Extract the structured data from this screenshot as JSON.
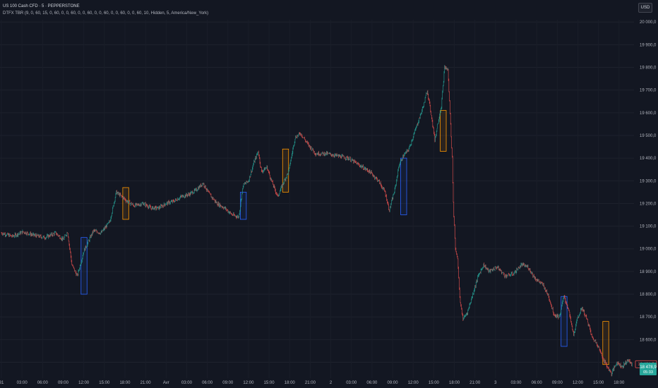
{
  "header": {
    "symbol": "US 100 Cash CFD · 5 · PEPPERSTONE",
    "indicator": "DTFX TBR (9, 0, 60, 15, 0, 60, 0, 0, 60, 0, 0, 60, 0, 0, 60, 0, 0, 60, 0, 0, 60, 10, Hidden, 5, America/New_York)",
    "currency_button": "USD"
  },
  "colors": {
    "background": "#131722",
    "up": "#26a69a",
    "down": "#ef5350",
    "axis_text": "#b2b5be",
    "box_blue": "#2962ff",
    "box_orange": "#ff9800"
  },
  "price_labels": {
    "current": "18 491,5",
    "last": "18 478,9",
    "last_time": "05:33"
  },
  "chart_data": {
    "type": "candlestick",
    "ylim": [
      18430,
      20010
    ],
    "y_ticks": [
      20000,
      19900,
      19800,
      19700,
      19600,
      19500,
      19400,
      19300,
      19200,
      19100,
      19000,
      18900,
      18800,
      18700,
      18600,
      18500
    ],
    "y_tick_labels": [
      "20 000,0",
      "19 900,0",
      "19 800,0",
      "19 700,0",
      "19 600,0",
      "19 500,0",
      "19 400,0",
      "19 300,0",
      "19 200,0",
      "19 100,0",
      "19 000,0",
      "18 900,0",
      "18 800,0",
      "18 700,0",
      "18 600,0",
      "18 500,0"
    ],
    "x_tick_labels": [
      "31",
      "03:00",
      "06:00",
      "09:00",
      "12:00",
      "15:00",
      "18:00",
      "21:00",
      "Avr",
      "03:00",
      "06:00",
      "09:00",
      "12:00",
      "15:00",
      "18:00",
      "21:00",
      "2",
      "03:00",
      "06:00",
      "09:00",
      "12:00",
      "15:00",
      "18:00",
      "21:00",
      "3",
      "03:00",
      "06:00",
      "09:00",
      "12:00",
      "15:00",
      "18:00"
    ],
    "x_tick_bars": [
      0,
      38,
      76,
      114,
      152,
      190,
      228,
      266,
      304,
      342,
      380,
      418,
      456,
      494,
      532,
      570,
      608,
      646,
      684,
      722,
      760,
      798,
      836,
      874,
      912,
      950,
      988,
      1026,
      1064,
      1102,
      1140
    ],
    "bar_count": 1165,
    "price_path": [
      [
        0,
        19070
      ],
      [
        20,
        19055
      ],
      [
        40,
        19075
      ],
      [
        60,
        19060
      ],
      [
        80,
        19050
      ],
      [
        100,
        19070
      ],
      [
        114,
        19040
      ],
      [
        122,
        19075
      ],
      [
        130,
        18930
      ],
      [
        140,
        18880
      ],
      [
        152,
        18990
      ],
      [
        160,
        19030
      ],
      [
        170,
        19080
      ],
      [
        184,
        19070
      ],
      [
        200,
        19120
      ],
      [
        212,
        19250
      ],
      [
        222,
        19230
      ],
      [
        232,
        19210
      ],
      [
        245,
        19190
      ],
      [
        262,
        19200
      ],
      [
        276,
        19180
      ],
      [
        290,
        19180
      ],
      [
        304,
        19200
      ],
      [
        318,
        19210
      ],
      [
        332,
        19230
      ],
      [
        346,
        19240
      ],
      [
        360,
        19260
      ],
      [
        372,
        19290
      ],
      [
        384,
        19240
      ],
      [
        398,
        19200
      ],
      [
        412,
        19180
      ],
      [
        426,
        19150
      ],
      [
        438,
        19140
      ],
      [
        446,
        19280
      ],
      [
        456,
        19300
      ],
      [
        466,
        19380
      ],
      [
        474,
        19430
      ],
      [
        480,
        19340
      ],
      [
        490,
        19360
      ],
      [
        500,
        19290
      ],
      [
        510,
        19230
      ],
      [
        520,
        19290
      ],
      [
        530,
        19340
      ],
      [
        542,
        19490
      ],
      [
        552,
        19510
      ],
      [
        566,
        19460
      ],
      [
        580,
        19420
      ],
      [
        600,
        19420
      ],
      [
        620,
        19410
      ],
      [
        640,
        19400
      ],
      [
        660,
        19370
      ],
      [
        680,
        19340
      ],
      [
        696,
        19300
      ],
      [
        708,
        19250
      ],
      [
        716,
        19170
      ],
      [
        726,
        19260
      ],
      [
        734,
        19370
      ],
      [
        742,
        19410
      ],
      [
        752,
        19440
      ],
      [
        762,
        19510
      ],
      [
        772,
        19580
      ],
      [
        780,
        19640
      ],
      [
        786,
        19700
      ],
      [
        794,
        19580
      ],
      [
        800,
        19480
      ],
      [
        806,
        19560
      ],
      [
        812,
        19630
      ],
      [
        818,
        19800
      ],
      [
        824,
        19790
      ],
      [
        828,
        19600
      ],
      [
        832,
        19400
      ],
      [
        834,
        19200
      ],
      [
        838,
        19000
      ],
      [
        842,
        18960
      ],
      [
        846,
        18780
      ],
      [
        852,
        18690
      ],
      [
        860,
        18720
      ],
      [
        870,
        18800
      ],
      [
        880,
        18880
      ],
      [
        890,
        18930
      ],
      [
        900,
        18900
      ],
      [
        915,
        18920
      ],
      [
        930,
        18880
      ],
      [
        945,
        18890
      ],
      [
        960,
        18930
      ],
      [
        972,
        18920
      ],
      [
        985,
        18870
      ],
      [
        1000,
        18840
      ],
      [
        1010,
        18790
      ],
      [
        1020,
        18710
      ],
      [
        1030,
        18700
      ],
      [
        1038,
        18790
      ],
      [
        1046,
        18740
      ],
      [
        1056,
        18620
      ],
      [
        1064,
        18700
      ],
      [
        1072,
        18740
      ],
      [
        1082,
        18680
      ],
      [
        1090,
        18610
      ],
      [
        1100,
        18580
      ],
      [
        1108,
        18530
      ],
      [
        1116,
        18490
      ],
      [
        1126,
        18450
      ],
      [
        1136,
        18500
      ],
      [
        1146,
        18480
      ],
      [
        1156,
        18510
      ],
      [
        1164,
        18490
      ]
    ],
    "boxes": [
      {
        "kind": "blue",
        "x_from": 147,
        "x_to": 158,
        "y_top": 19050,
        "y_bottom": 18800
      },
      {
        "kind": "orange",
        "x_from": 224,
        "x_to": 235,
        "y_top": 19270,
        "y_bottom": 19130
      },
      {
        "kind": "blue",
        "x_from": 441,
        "x_to": 452,
        "y_top": 19250,
        "y_bottom": 19130
      },
      {
        "kind": "orange",
        "x_from": 519,
        "x_to": 530,
        "y_top": 19440,
        "y_bottom": 19250
      },
      {
        "kind": "blue",
        "x_from": 737,
        "x_to": 748,
        "y_top": 19400,
        "y_bottom": 19150
      },
      {
        "kind": "orange",
        "x_from": 810,
        "x_to": 821,
        "y_top": 19610,
        "y_bottom": 19430
      },
      {
        "kind": "blue",
        "x_from": 1033,
        "x_to": 1044,
        "y_top": 18790,
        "y_bottom": 18570
      },
      {
        "kind": "orange",
        "x_from": 1110,
        "x_to": 1121,
        "y_top": 18680,
        "y_bottom": 18490
      }
    ]
  }
}
